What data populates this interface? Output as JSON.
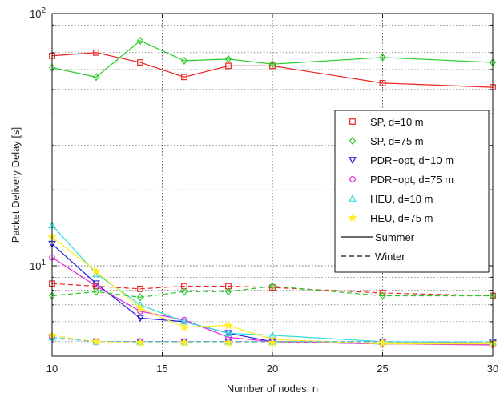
{
  "chart_data": {
    "type": "line",
    "xlabel": "Number of nodes, n",
    "ylabel": "Packet Delivery Delay [s]",
    "xlim": [
      10,
      30
    ],
    "ylim": [
      4,
      100
    ],
    "yscale": "log",
    "grid": true,
    "legend_position": "right",
    "x_ticks": [
      "10",
      "15",
      "20",
      "25",
      "30"
    ],
    "y_tick_labels": [
      {
        "value": 10,
        "mantissa": "10",
        "exponent": "1"
      },
      {
        "value": 100,
        "mantissa": "10",
        "exponent": "2"
      }
    ],
    "x": [
      10,
      12,
      14,
      16,
      18,
      20,
      25,
      30
    ],
    "series": [
      {
        "name": "SP, d=10 m",
        "season": "Summer",
        "color": "#ee2222",
        "marker": "square",
        "values": [
          68,
          70,
          64,
          56,
          62,
          62,
          53,
          51
        ]
      },
      {
        "name": "SP, d=75 m",
        "season": "Summer",
        "color": "#22cc22",
        "marker": "diamond",
        "values": [
          61,
          56,
          78,
          65,
          66,
          63,
          67,
          64
        ]
      },
      {
        "name": "PDR−opt, d=10 m",
        "season": "Summer",
        "color": "#2222dd",
        "marker": "triangle-down",
        "values": [
          12.2,
          8.5,
          6.2,
          6.0,
          5.4,
          5.0,
          4.9,
          4.9
        ]
      },
      {
        "name": "PDR−opt, d=75 m",
        "season": "Summer",
        "color": "#dd22dd",
        "marker": "circle",
        "values": [
          10.8,
          8.3,
          6.6,
          6.1,
          5.2,
          5.0,
          4.9,
          4.85
        ]
      },
      {
        "name": "HEU, d=10 m",
        "season": "Summer",
        "color": "#33dddd",
        "marker": "triangle-up",
        "values": [
          14.5,
          9.3,
          7.0,
          6.0,
          5.4,
          5.3,
          5.0,
          4.95
        ]
      },
      {
        "name": "HEU, d=75 m",
        "season": "Summer",
        "color": "#ffee22",
        "marker": "star",
        "values": [
          13.0,
          9.5,
          6.8,
          5.7,
          5.8,
          5.1,
          4.9,
          4.9
        ]
      },
      {
        "name": "SP, d=10 m",
        "season": "Winter",
        "color": "#ee2222",
        "marker": "square",
        "values": [
          8.5,
          8.3,
          8.1,
          8.3,
          8.3,
          8.2,
          7.8,
          7.6
        ]
      },
      {
        "name": "SP, d=75 m",
        "season": "Winter",
        "color": "#22cc22",
        "marker": "diamond",
        "values": [
          7.6,
          7.9,
          7.5,
          7.9,
          7.9,
          8.3,
          7.6,
          7.6
        ]
      },
      {
        "name": "PDR−opt, d=10 m",
        "season": "Winter",
        "color": "#2222dd",
        "marker": "triangle-down",
        "values": [
          5.2,
          5.0,
          5.0,
          5.0,
          5.0,
          5.0,
          5.0,
          4.95
        ]
      },
      {
        "name": "PDR−opt, d=75 m",
        "season": "Winter",
        "color": "#dd22dd",
        "marker": "circle",
        "values": [
          5.2,
          5.0,
          5.0,
          5.0,
          5.0,
          5.0,
          5.0,
          4.95
        ]
      },
      {
        "name": "HEU, d=10 m",
        "season": "Winter",
        "color": "#33dddd",
        "marker": "triangle-up",
        "values": [
          5.2,
          5.0,
          5.0,
          5.0,
          5.0,
          5.0,
          5.0,
          5.0
        ]
      },
      {
        "name": "HEU, d=75 m",
        "season": "Winter",
        "color": "#ffee22",
        "marker": "star",
        "values": [
          5.3,
          5.0,
          4.95,
          4.95,
          4.95,
          4.95,
          4.95,
          4.95
        ]
      }
    ],
    "legend": {
      "entries": [
        {
          "label": "SP, d=10 m",
          "color": "#ee2222",
          "marker": "square"
        },
        {
          "label": "SP, d=75 m",
          "color": "#22cc22",
          "marker": "diamond"
        },
        {
          "label": "PDR−opt, d=10 m",
          "color": "#2222dd",
          "marker": "triangle-down"
        },
        {
          "label": "PDR−opt, d=75 m",
          "color": "#dd22dd",
          "marker": "circle"
        },
        {
          "label": "HEU, d=10 m",
          "color": "#33dddd",
          "marker": "triangle-up"
        },
        {
          "label": "HEU, d=75 m",
          "color": "#ffee22",
          "marker": "star"
        }
      ],
      "styles": [
        {
          "label": "Summer",
          "line": "solid"
        },
        {
          "label": "Winter",
          "line": "dashed"
        }
      ]
    }
  }
}
